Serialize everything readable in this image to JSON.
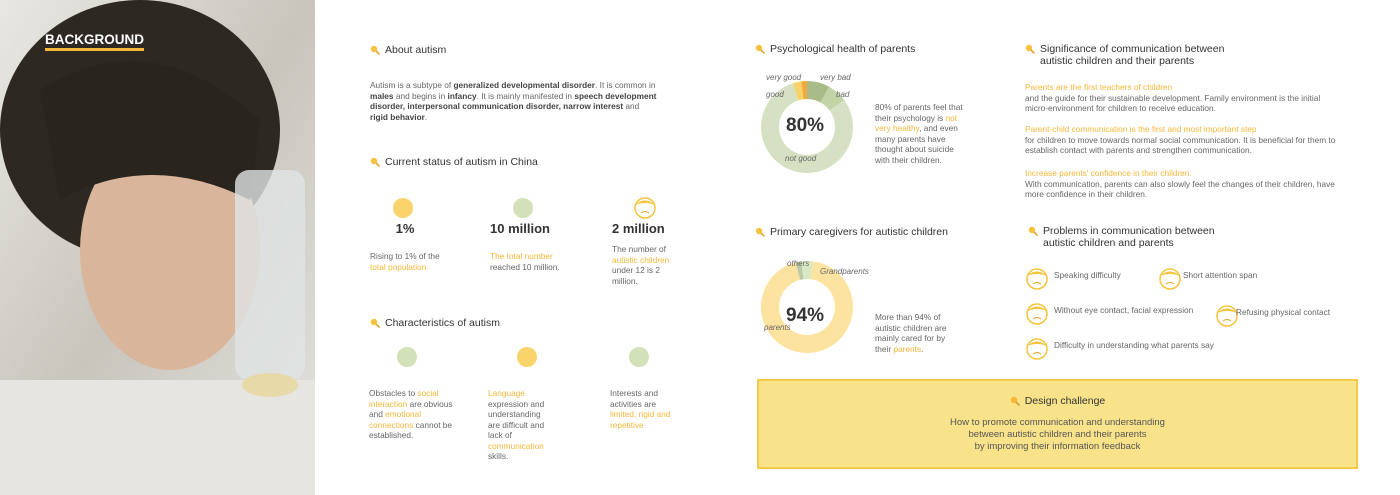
{
  "header": {
    "title": "BACKGROUND"
  },
  "about": {
    "title": "About autism",
    "runs": [
      "Autism is a subtype of ",
      {
        "text": "generalized developmental disorder",
        "style": "bold"
      },
      ". It is common in ",
      {
        "text": "males",
        "style": "bold"
      },
      " and begins in ",
      {
        "text": "infancy",
        "style": "bold"
      },
      ". It is mainly manifested in ",
      {
        "text": "speech development disorder, interpersonal communication disorder, narrow interest",
        "style": "bold"
      },
      " and ",
      {
        "text": "rigid behavior",
        "style": "bold"
      },
      "."
    ]
  },
  "status": {
    "title": "Current status of autism in China",
    "items": [
      {
        "value": "1%",
        "runs": [
          "Rising to 1% of the ",
          {
            "text": "total population",
            "style": "accent"
          }
        ]
      },
      {
        "value": "10 million",
        "runs": [
          {
            "text": "The total number",
            "style": "accent"
          },
          " reached 10 million."
        ]
      },
      {
        "value": "2 million",
        "runs": [
          "The number of ",
          {
            "text": "autistic children",
            "style": "accent"
          },
          " under 12 is 2 million."
        ]
      }
    ]
  },
  "characteristics": {
    "title": "Characteristics of autism",
    "items": [
      {
        "runs": [
          "Obstacles to ",
          {
            "text": "social interaction",
            "style": "accent"
          },
          " are obvious and ",
          {
            "text": "emotional connections",
            "style": "accent"
          },
          " cannot be established."
        ]
      },
      {
        "runs": [
          {
            "text": "Language",
            "style": "accent"
          },
          " expression and understanding are difficult and lack of ",
          {
            "text": "communication",
            "style": "accent"
          },
          " skills."
        ]
      },
      {
        "runs": [
          "Interests and activities are ",
          {
            "text": "limited, rigid and repetitive",
            "style": "accent"
          }
        ]
      }
    ]
  },
  "psychology": {
    "title": "Psychological health of parents",
    "center": "80%",
    "segments": [
      {
        "name": "very bad",
        "value": 8,
        "color": "#a9bb87"
      },
      {
        "name": "bad",
        "value": 7,
        "color": "#c3d3a8"
      },
      {
        "name": "not good",
        "value": 80,
        "color": "#d6e1c3"
      },
      {
        "name": "good",
        "value": 3,
        "color": "#f5d36a"
      },
      {
        "name": "very good",
        "value": 2,
        "color": "#f2a93b"
      }
    ],
    "runs": [
      "80% of parents feel that their psychology is ",
      {
        "text": "not very healthy",
        "style": "accent"
      },
      ", and even many parents have thought about suicide with their children."
    ]
  },
  "caregivers": {
    "title": "Primary caregivers for autistic children",
    "center": "94%",
    "segments": [
      {
        "name": "others",
        "value": 2,
        "color": "#bccaa8"
      },
      {
        "name": "Grandparents",
        "value": 4,
        "color": "#d8e8c4"
      },
      {
        "name": "parents",
        "value": 94,
        "color": "#fde3a0"
      }
    ],
    "runs": [
      "More than 94% of autistic children are mainly cared for by their ",
      {
        "text": "parents",
        "style": "accent"
      },
      "."
    ]
  },
  "significance": {
    "title": "Significance of communication between autistic children and their parents",
    "items": [
      {
        "heading": "Parents are the first teachers of children",
        "text": "and the guide for their sustainable development. Family environment is the initial micro-environment for children to receive education."
      },
      {
        "heading": "Parent-child communication is the first and most important step",
        "text": "for children to move towards normal social communication. It is beneficial for them to establish contact with parents and strengthen communication."
      },
      {
        "heading": "Increase parents' confidence in their children.",
        "text": "With communication, parents can also slowly feel the changes of their children, have more confidence in their children."
      }
    ]
  },
  "problems": {
    "title": "Problems in communication between autistic children and parents",
    "items": [
      "Speaking difficulty",
      "Short attention span",
      "Without eye contact, facial expression",
      "Refusing physical contact",
      "Difficulty in understanding what parents say"
    ]
  },
  "challenge": {
    "title": "Design challenge",
    "lines": [
      "How to promote communication and understanding",
      "between autistic children and their parents",
      "by improving their information feedback"
    ]
  }
}
